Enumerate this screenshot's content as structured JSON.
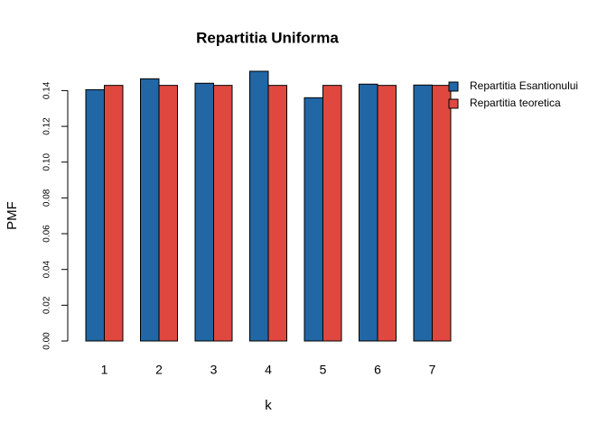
{
  "chart_data": {
    "type": "bar",
    "title": "Repartitia Uniforma",
    "x_label": "k",
    "y_label": "PMF",
    "categories": [
      "1",
      "2",
      "3",
      "4",
      "5",
      "6",
      "7"
    ],
    "series": [
      {
        "name": "Repartitia Esantionului",
        "color": "#2166a5",
        "values": [
          0.1405,
          0.1466,
          0.1441,
          0.1508,
          0.136,
          0.1436,
          0.1431
        ]
      },
      {
        "name": "Repartitia teoretica",
        "color": "#e0483f",
        "values": [
          0.1429,
          0.1429,
          0.1429,
          0.1429,
          0.1429,
          0.1429,
          0.1429
        ]
      }
    ],
    "ylim": [
      0,
      0.1508
    ],
    "yticks": [
      {
        "value": 0,
        "label": "0.00"
      },
      {
        "value": 0.02,
        "label": "0.02"
      },
      {
        "value": 0.04,
        "label": "0.04"
      },
      {
        "value": 0.06,
        "label": "0.06"
      },
      {
        "value": 0.08,
        "label": "0.08"
      },
      {
        "value": 0.1,
        "label": "0.10"
      },
      {
        "value": 0.12,
        "label": "0.12"
      },
      {
        "value": 0.14,
        "label": "0.14"
      }
    ],
    "legend": "top-right"
  }
}
